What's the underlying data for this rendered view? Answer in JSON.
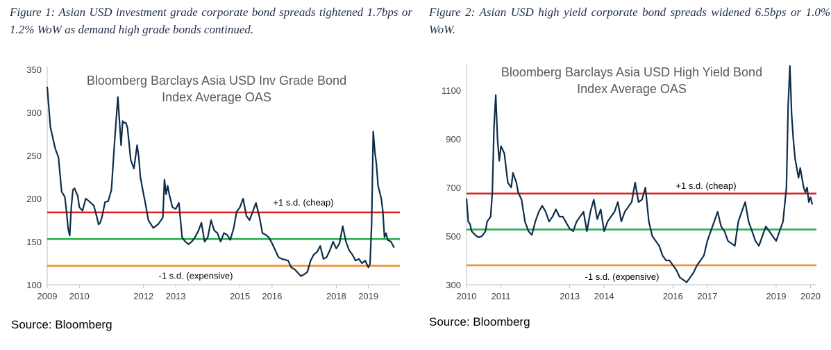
{
  "figures": [
    {
      "caption": "Figure 1: Asian USD investment grade corporate bond spreads tightened 1.7bps or 1.2% WoW as demand high grade bonds continued.",
      "source": "Source: Bloomberg",
      "chart_data": {
        "type": "line",
        "title": [
          "Bloomberg  Barclays Asia USD Inv Grade Bond",
          "Index Average OAS"
        ],
        "xlabel": "",
        "ylabel": "",
        "xlim": [
          2009.0,
          2019.85
        ],
        "ylim": [
          100,
          350
        ],
        "x_ticks": [
          "2009",
          "2010",
          "2012",
          "2013",
          "2015",
          "2016",
          "2018",
          "2019"
        ],
        "y_ticks": [
          "350",
          "300",
          "250",
          "200",
          "150",
          "100"
        ],
        "series": [
          {
            "color": "#0e2d4a",
            "x": [
              2009.0,
              2009.1,
              2009.25,
              2009.35,
              2009.45,
              2009.55,
              2009.6,
              2009.65,
              2009.7,
              2009.75,
              2009.8,
              2009.85,
              2009.95,
              2010.0,
              2010.1,
              2010.2,
              2010.3,
              2010.45,
              2010.55,
              2010.6,
              2010.65,
              2010.7,
              2010.8,
              2010.9,
              2011.0,
              2011.1,
              2011.2,
              2011.25,
              2011.3,
              2011.35,
              2011.4,
              2011.45,
              2011.5,
              2011.6,
              2011.7,
              2011.8,
              2011.85,
              2011.9,
              2011.95,
              2012.0,
              2012.05,
              2012.15,
              2012.3,
              2012.45,
              2012.6,
              2012.65,
              2012.7,
              2012.75,
              2012.8,
              2012.9,
              2013.0,
              2013.1,
              2013.2,
              2013.3,
              2013.4,
              2013.5,
              2013.6,
              2013.7,
              2013.8,
              2013.9,
              2014.0,
              2014.1,
              2014.2,
              2014.3,
              2014.4,
              2014.5,
              2014.6,
              2014.7,
              2014.8,
              2014.9,
              2015.0,
              2015.1,
              2015.2,
              2015.3,
              2015.4,
              2015.5,
              2015.6,
              2015.7,
              2015.8,
              2015.9,
              2016.0,
              2016.1,
              2016.2,
              2016.3,
              2016.4,
              2016.5,
              2016.6,
              2016.7,
              2016.8,
              2016.9,
              2017.0,
              2017.1,
              2017.2,
              2017.3,
              2017.4,
              2017.5,
              2017.6,
              2017.7,
              2017.8,
              2017.9,
              2018.0,
              2018.1,
              2018.2,
              2018.3,
              2018.4,
              2018.5,
              2018.6,
              2018.7,
              2018.8,
              2018.9,
              2019.0,
              2019.05,
              2019.1,
              2019.15,
              2019.2,
              2019.25,
              2019.3,
              2019.4,
              2019.45,
              2019.5,
              2019.55,
              2019.6,
              2019.7,
              2019.8
            ],
            "y": [
              330,
              283,
              258,
              248,
              208,
              202,
              185,
              165,
              157,
              190,
              210,
              212,
              203,
              190,
              186,
              200,
              197,
              192,
              178,
              170,
              172,
              178,
              196,
              197,
              210,
              268,
              318,
              290,
              262,
              290,
              288,
              288,
              282,
              245,
              235,
              262,
              248,
              225,
              215,
              205,
              196,
              175,
              166,
              170,
              178,
              222,
              205,
              215,
              205,
              190,
              188,
              195,
              155,
              150,
              147,
              150,
              155,
              162,
              172,
              150,
              155,
              175,
              163,
              160,
              150,
              160,
              158,
              152,
              165,
              185,
              190,
              200,
              180,
              175,
              185,
              195,
              180,
              160,
              158,
              155,
              148,
              140,
              132,
              130,
              129,
              128,
              120,
              118,
              114,
              110,
              112,
              115,
              128,
              135,
              138,
              145,
              130,
              132,
              140,
              150,
              142,
              148,
              168,
              150,
              140,
              135,
              128,
              130,
              125,
              128,
              120,
              124,
              170,
              278,
              255,
              240,
              215,
              200,
              185,
              155,
              160,
              152,
              150,
              143
            ]
          }
        ],
        "reference_lines": [
          {
            "label": "+1 s.d. (cheap)",
            "value": 184,
            "color": "#e31a1c"
          },
          {
            "label": "",
            "value": 153,
            "color": "#22b14c"
          },
          {
            "label": "-1 s.d. (expensive)",
            "value": 122,
            "color": "#f28c28"
          }
        ]
      }
    },
    {
      "caption": "Figure 2: Asian USD high yield corporate bond spreads widened 6.5bps or 1.0% WoW.",
      "source": "Source: Bloomberg",
      "chart_data": {
        "type": "line",
        "title": [
          "Bloomberg  Barclays Asia USD High Yield Bond",
          "Index Average OAS"
        ],
        "xlabel": "",
        "ylabel": "",
        "xlim": [
          2010.0,
          2020.05
        ],
        "ylim": [
          300,
          1200
        ],
        "x_ticks": [
          "2010",
          "2011",
          "2013",
          "2014",
          "2016",
          "2017",
          "2019",
          "2020"
        ],
        "y_ticks": [
          "1100",
          "900",
          "700",
          "500",
          "300"
        ],
        "series": [
          {
            "color": "#0e2d4a",
            "x": [
              2010.0,
              2010.05,
              2010.1,
              2010.15,
              2010.25,
              2010.35,
              2010.45,
              2010.55,
              2010.6,
              2010.7,
              2010.75,
              2010.8,
              2010.85,
              2010.9,
              2010.95,
              2011.0,
              2011.1,
              2011.2,
              2011.3,
              2011.35,
              2011.45,
              2011.5,
              2011.6,
              2011.7,
              2011.8,
              2011.9,
              2012.0,
              2012.1,
              2012.2,
              2012.3,
              2012.4,
              2012.5,
              2012.6,
              2012.7,
              2012.8,
              2012.9,
              2013.0,
              2013.1,
              2013.2,
              2013.3,
              2013.4,
              2013.5,
              2013.6,
              2013.7,
              2013.8,
              2013.9,
              2014.0,
              2014.1,
              2014.2,
              2014.3,
              2014.4,
              2014.5,
              2014.6,
              2014.7,
              2014.8,
              2014.9,
              2015.0,
              2015.1,
              2015.2,
              2015.3,
              2015.4,
              2015.5,
              2015.6,
              2015.7,
              2015.8,
              2015.9,
              2016.0,
              2016.1,
              2016.2,
              2016.3,
              2016.4,
              2016.5,
              2016.6,
              2016.7,
              2016.8,
              2016.9,
              2017.0,
              2017.1,
              2017.2,
              2017.3,
              2017.4,
              2017.5,
              2017.6,
              2017.7,
              2017.8,
              2017.9,
              2018.0,
              2018.1,
              2018.2,
              2018.3,
              2018.4,
              2018.5,
              2018.6,
              2018.7,
              2018.8,
              2018.9,
              2019.0,
              2019.1,
              2019.2,
              2019.3,
              2019.35,
              2019.4,
              2019.45,
              2019.5,
              2019.55,
              2019.6,
              2019.65,
              2019.7,
              2019.8,
              2019.85,
              2019.9,
              2019.95,
              2020.0,
              2020.05
            ],
            "y": [
              655,
              560,
              550,
              520,
              505,
              495,
              500,
              520,
              560,
              580,
              680,
              950,
              1080,
              900,
              810,
              870,
              840,
              720,
              700,
              760,
              720,
              680,
              650,
              560,
              520,
              505,
              560,
              600,
              625,
              600,
              560,
              580,
              610,
              580,
              580,
              555,
              530,
              520,
              560,
              580,
              600,
              520,
              600,
              650,
              570,
              610,
              520,
              560,
              580,
              600,
              640,
              560,
              600,
              620,
              640,
              720,
              640,
              650,
              700,
              560,
              500,
              480,
              460,
              420,
              400,
              400,
              380,
              360,
              330,
              320,
              310,
              330,
              350,
              380,
              400,
              420,
              480,
              520,
              560,
              600,
              540,
              520,
              480,
              470,
              460,
              560,
              600,
              640,
              560,
              520,
              480,
              460,
              500,
              540,
              520,
              500,
              480,
              520,
              560,
              700,
              1040,
              1200,
              1000,
              900,
              820,
              780,
              740,
              780,
              700,
              680,
              700,
              640,
              660,
              630
            ]
          }
        ],
        "reference_lines": [
          {
            "label": "+1 s.d. (cheap)",
            "value": 675,
            "color": "#e31a1c"
          },
          {
            "label": "",
            "value": 527,
            "color": "#22b14c"
          },
          {
            "label": "-1 s.d. (expensive)",
            "value": 380,
            "color": "#f28c28"
          }
        ]
      }
    }
  ]
}
